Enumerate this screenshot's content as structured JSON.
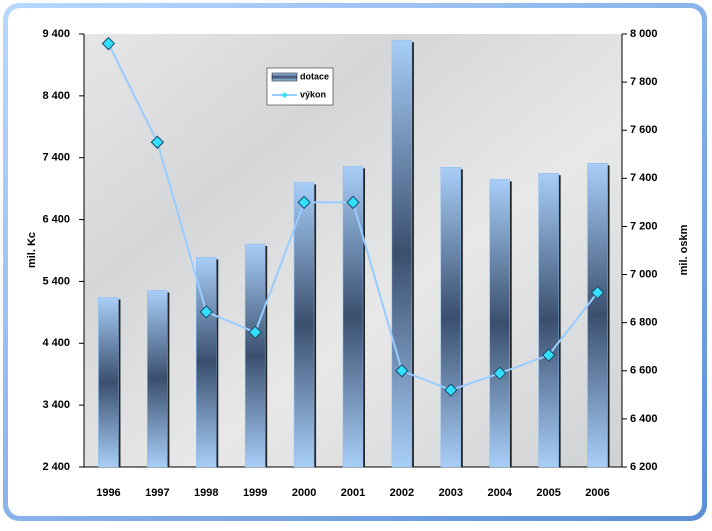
{
  "chart_data": {
    "type": "bar-line",
    "categories": [
      "1996",
      "1997",
      "1998",
      "1999",
      "2000",
      "2001",
      "2002",
      "2003",
      "2004",
      "2005",
      "2006"
    ],
    "series": [
      {
        "name": "dotace",
        "type": "bar",
        "color": "#8cbcf0",
        "values": [
          5140,
          5255,
          5790,
          6005,
          7000,
          7260,
          9300,
          7245,
          7050,
          7150,
          7310
        ]
      },
      {
        "name": "výkon",
        "type": "line",
        "axis": "y2",
        "color": "#99ccff",
        "values": [
          7960,
          7550,
          6845,
          6760,
          7300,
          7300,
          6600,
          6520,
          6590,
          6665,
          6925
        ]
      }
    ],
    "ylabel": "mil. Kc",
    "y2label": "mil. oskm",
    "ylim": [
      2400,
      9400
    ],
    "yticks": [
      {
        "value": 2400,
        "label": "2 400"
      },
      {
        "value": 3400,
        "label": "3 400"
      },
      {
        "value": 4400,
        "label": "4 400"
      },
      {
        "value": 5400,
        "label": "5 400"
      },
      {
        "value": 6400,
        "label": "6 400"
      },
      {
        "value": 7400,
        "label": "7 400"
      },
      {
        "value": 8400,
        "label": "8 400"
      },
      {
        "value": 9400,
        "label": "9 400"
      }
    ],
    "y2lim": [
      6200,
      8000
    ],
    "y2ticks": [
      {
        "value": 6200,
        "label": "6 200"
      },
      {
        "value": 6400,
        "label": "6 400"
      },
      {
        "value": 6600,
        "label": "6 600"
      },
      {
        "value": 6800,
        "label": "6 800"
      },
      {
        "value": 7000,
        "label": "7 000"
      },
      {
        "value": 7200,
        "label": "7 200"
      },
      {
        "value": 7400,
        "label": "7 400"
      },
      {
        "value": 7600,
        "label": "7 600"
      },
      {
        "value": 7800,
        "label": "7 800"
      },
      {
        "value": 8000,
        "label": "8 000"
      }
    ]
  }
}
